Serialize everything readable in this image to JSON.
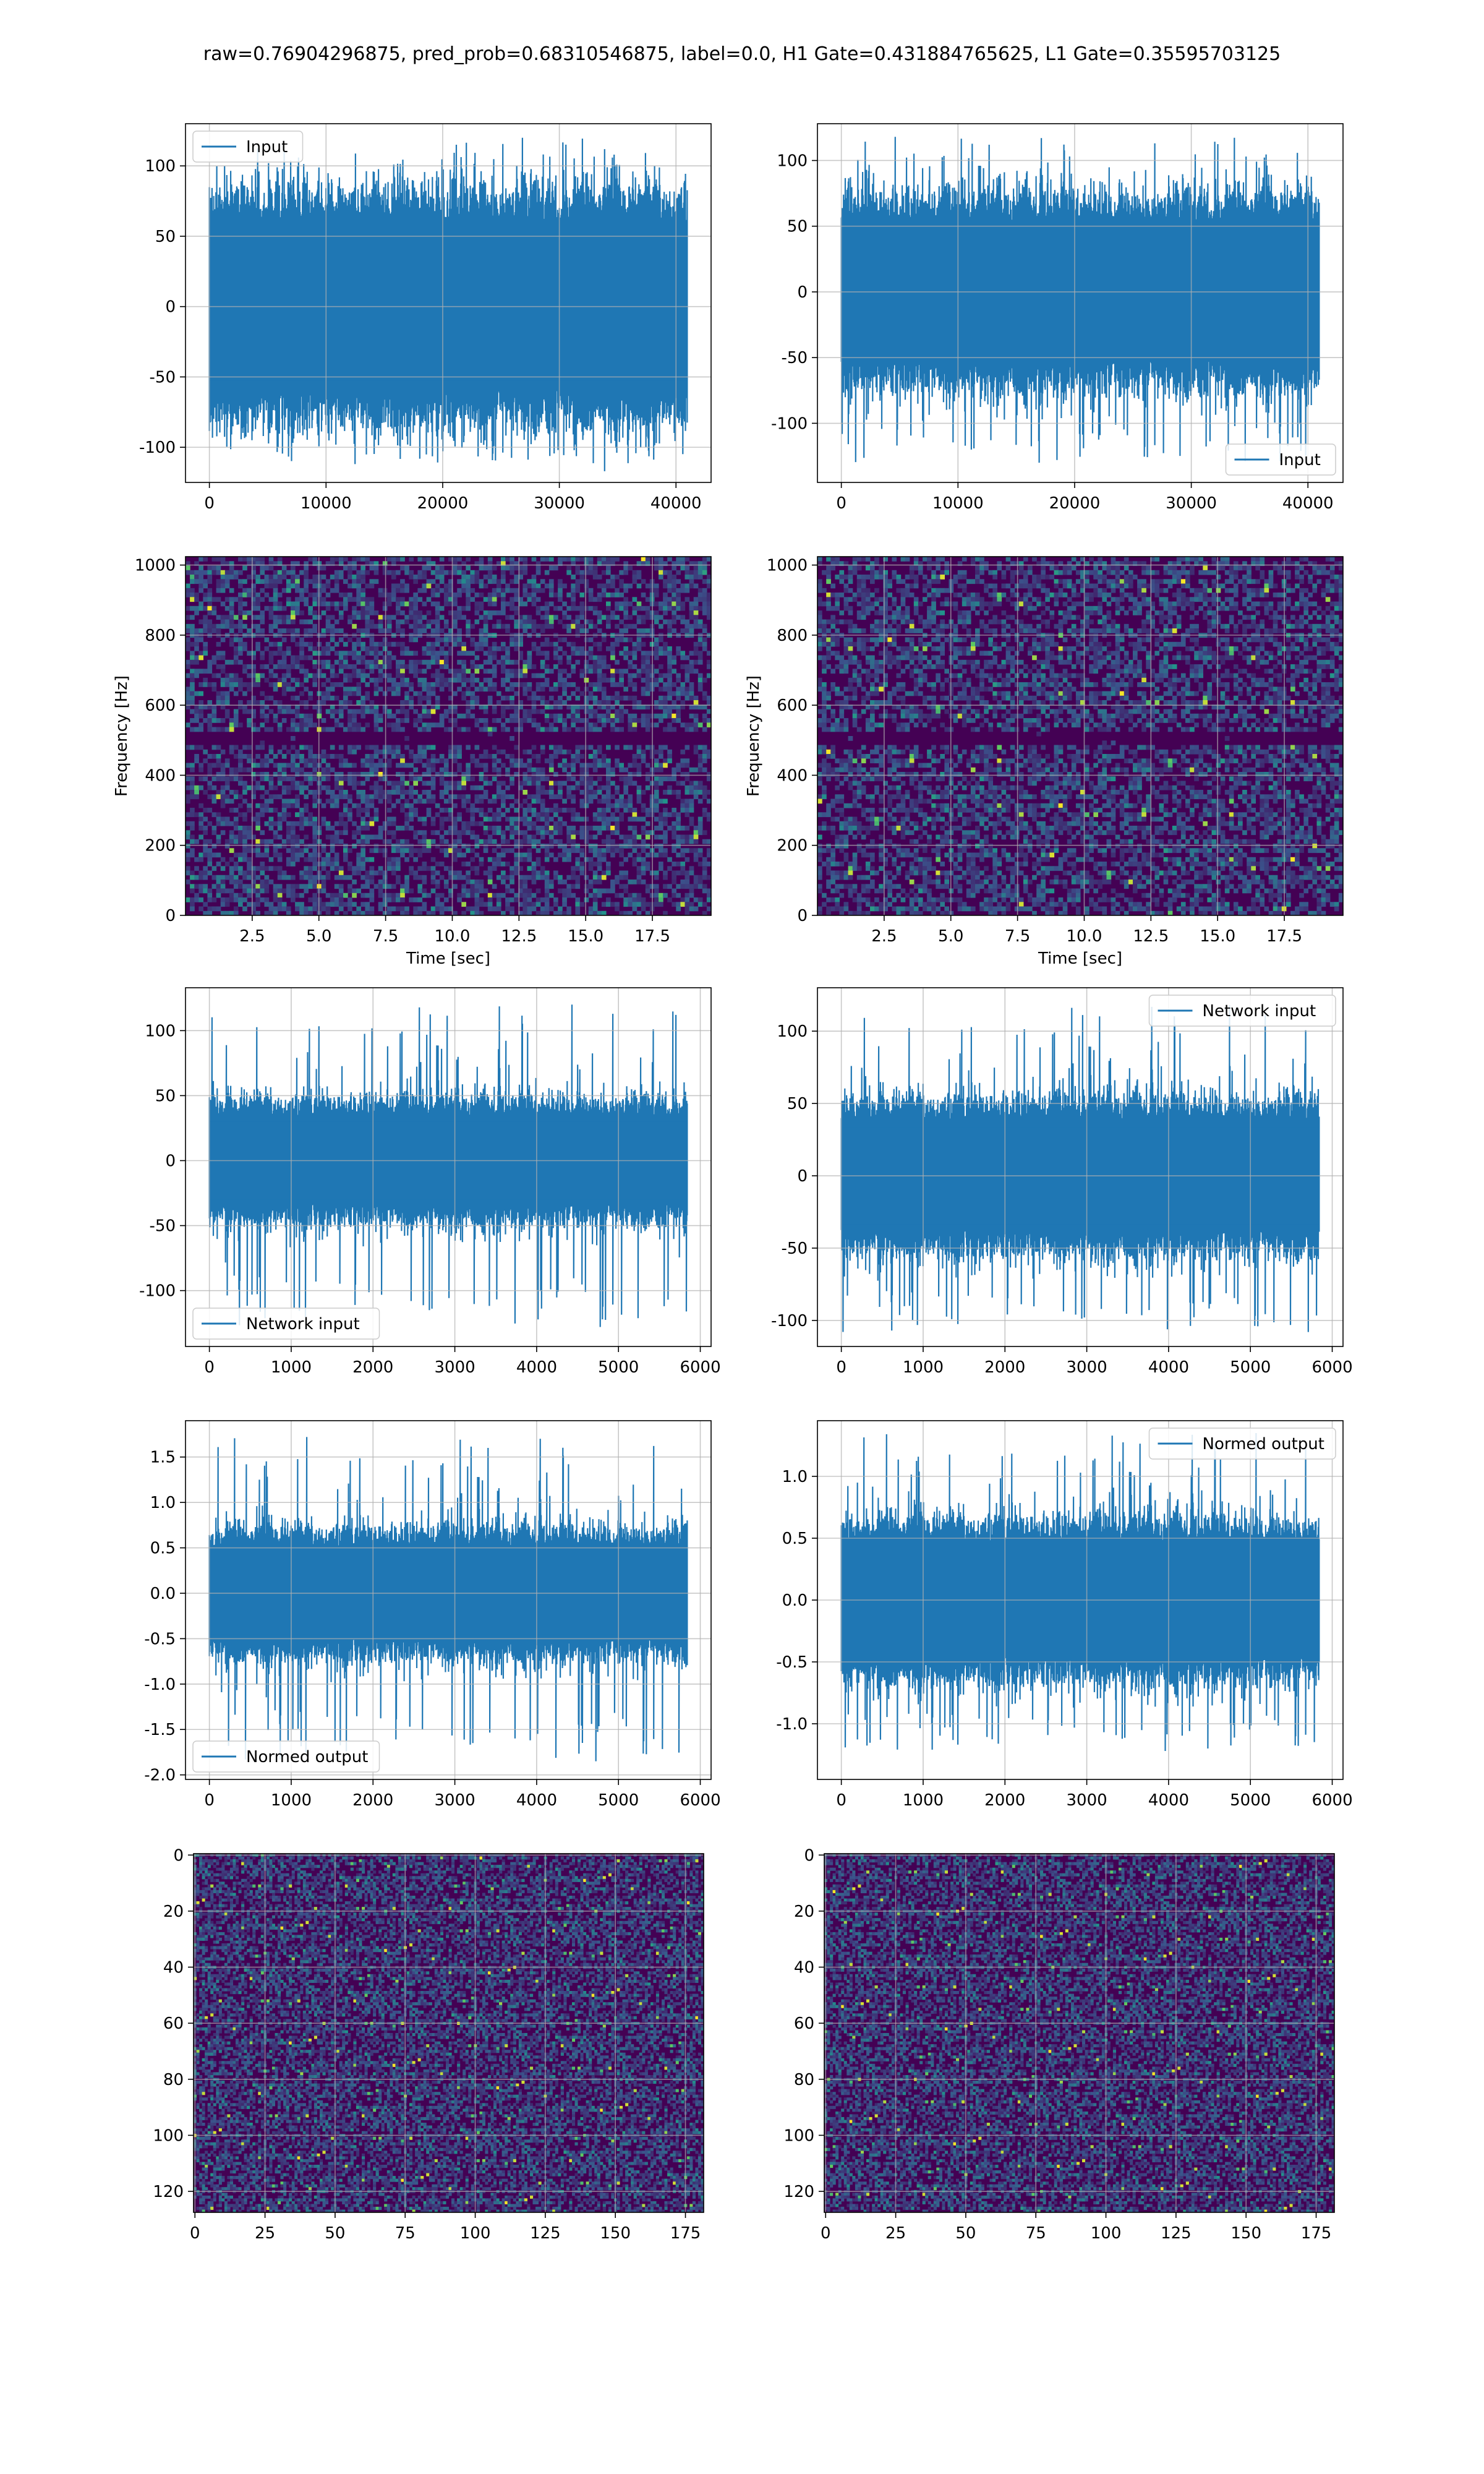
{
  "title": "raw=0.76904296875, pred_prob=0.68310546875, label=0.0, H1 Gate=0.431884765625, L1 Gate=0.35595703125",
  "colors": {
    "series": "#1f77b4",
    "grid": "#b0b0b0",
    "viridis_low": "#440154",
    "viridis_mid": "#31688e",
    "viridis_mid2": "#35b779",
    "viridis_high": "#fde725"
  },
  "chart_data": [
    {
      "id": "row1-left",
      "type": "line",
      "series": [
        {
          "name": "Input",
          "envelope": 70,
          "spike_max": 120,
          "spike_min": -112,
          "n_points": 40960
        }
      ],
      "xlim": [
        -2048,
        43008
      ],
      "ylim": [
        -125,
        130
      ],
      "xticks": [
        0,
        10000,
        20000,
        30000,
        40000
      ],
      "yticks": [
        -100,
        -50,
        0,
        50,
        100
      ],
      "xlabel": "",
      "ylabel": "",
      "legend": "upper left",
      "grid": true
    },
    {
      "id": "row1-right",
      "type": "line",
      "series": [
        {
          "name": "Input",
          "envelope": 62,
          "spike_max": 118,
          "spike_min": -130,
          "n_points": 40960
        }
      ],
      "xlim": [
        -2048,
        43008
      ],
      "ylim": [
        -145,
        128
      ],
      "xticks": [
        0,
        10000,
        20000,
        30000,
        40000
      ],
      "yticks": [
        -100,
        -50,
        0,
        50,
        100
      ],
      "xlabel": "",
      "ylabel": "",
      "legend": "lower right",
      "grid": true
    },
    {
      "id": "row2-left",
      "type": "heatmap",
      "colormap": "viridis",
      "xlim": [
        0,
        19.7
      ],
      "ylim": [
        0,
        1024
      ],
      "xticks": [
        2.5,
        5.0,
        7.5,
        10.0,
        12.5,
        15.0,
        17.5
      ],
      "yticks": [
        0,
        200,
        400,
        600,
        800,
        1000
      ],
      "xlabel": "Time [sec]",
      "ylabel": "Frequency [Hz]",
      "grid": true
    },
    {
      "id": "row2-right",
      "type": "heatmap",
      "colormap": "viridis",
      "xlim": [
        0,
        19.7
      ],
      "ylim": [
        0,
        1024
      ],
      "xticks": [
        2.5,
        5.0,
        7.5,
        10.0,
        12.5,
        15.0,
        17.5
      ],
      "yticks": [
        0,
        200,
        400,
        600,
        800,
        1000
      ],
      "xlabel": "Time [sec]",
      "ylabel": "Frequency [Hz]",
      "grid": true
    },
    {
      "id": "row3-left",
      "type": "line",
      "series": [
        {
          "name": "Network input",
          "envelope": 40,
          "spike_max": 120,
          "spike_min": -128,
          "n_points": 5840
        }
      ],
      "xlim": [
        -292,
        6132
      ],
      "ylim": [
        -143,
        133
      ],
      "xticks": [
        0,
        1000,
        2000,
        3000,
        4000,
        5000,
        6000
      ],
      "yticks": [
        -100,
        -50,
        0,
        50,
        100
      ],
      "xlabel": "",
      "ylabel": "",
      "legend": "lower left",
      "grid": true
    },
    {
      "id": "row3-right",
      "type": "line",
      "series": [
        {
          "name": "Network input",
          "envelope": 45,
          "spike_max": 118,
          "spike_min": -108,
          "n_points": 5840
        }
      ],
      "xlim": [
        -292,
        6132
      ],
      "ylim": [
        -118,
        130
      ],
      "xticks": [
        0,
        1000,
        2000,
        3000,
        4000,
        5000,
        6000
      ],
      "yticks": [
        -100,
        -50,
        0,
        50,
        100
      ],
      "xlabel": "",
      "ylabel": "",
      "legend": "upper right",
      "grid": true
    },
    {
      "id": "row4-left",
      "type": "line",
      "series": [
        {
          "name": "Normed output",
          "envelope": 0.6,
          "spike_max": 1.72,
          "spike_min": -1.85,
          "n_points": 5840
        }
      ],
      "xlim": [
        -292,
        6132
      ],
      "ylim": [
        -2.05,
        1.9
      ],
      "xticks": [
        0,
        1000,
        2000,
        3000,
        4000,
        5000,
        6000
      ],
      "yticks": [
        -2.0,
        -1.5,
        -1.0,
        -0.5,
        0.0,
        0.5,
        1.0,
        1.5
      ],
      "xlabel": "",
      "ylabel": "",
      "legend": "lower left",
      "grid": true
    },
    {
      "id": "row4-right",
      "type": "line",
      "series": [
        {
          "name": "Normed output",
          "envelope": 0.55,
          "spike_max": 1.35,
          "spike_min": -1.22,
          "n_points": 5840
        }
      ],
      "xlim": [
        -292,
        6132
      ],
      "ylim": [
        -1.45,
        1.45
      ],
      "xticks": [
        0,
        1000,
        2000,
        3000,
        4000,
        5000,
        6000
      ],
      "yticks": [
        -1.0,
        -0.5,
        0.0,
        0.5,
        1.0
      ],
      "xlabel": "",
      "ylabel": "",
      "legend": "upper right",
      "grid": true
    },
    {
      "id": "row5-left",
      "type": "heatmap",
      "colormap": "viridis",
      "rows": 128,
      "cols": 182,
      "xlim": [
        -0.5,
        181.5
      ],
      "ylim": [
        127.5,
        -0.5
      ],
      "xticks": [
        0,
        25,
        50,
        75,
        100,
        125,
        150,
        175
      ],
      "yticks": [
        0,
        20,
        40,
        60,
        80,
        100,
        120
      ],
      "xlabel": "",
      "ylabel": "",
      "grid": true
    },
    {
      "id": "row5-right",
      "type": "heatmap",
      "colormap": "viridis",
      "rows": 128,
      "cols": 182,
      "xlim": [
        -0.5,
        181.5
      ],
      "ylim": [
        127.5,
        -0.5
      ],
      "xticks": [
        0,
        25,
        50,
        75,
        100,
        125,
        150,
        175
      ],
      "yticks": [
        0,
        20,
        40,
        60,
        80,
        100,
        120
      ],
      "xlabel": "",
      "ylabel": "",
      "grid": true
    }
  ]
}
